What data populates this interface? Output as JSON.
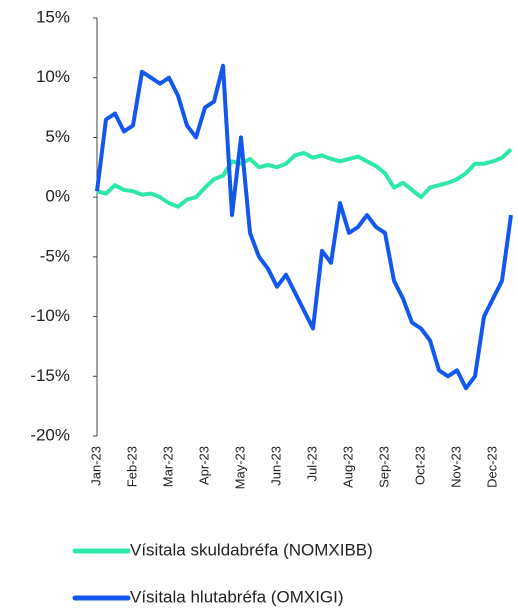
{
  "chart_data": {
    "type": "line",
    "categories": [
      "Jan-23",
      null,
      null,
      null,
      "Feb-23",
      null,
      null,
      null,
      "Mar-23",
      null,
      null,
      null,
      "Apr-23",
      null,
      null,
      null,
      "May-23",
      null,
      null,
      null,
      "Jun-23",
      null,
      null,
      null,
      "Jul-23",
      null,
      null,
      null,
      "Aug-23",
      null,
      null,
      null,
      "Sep-23",
      null,
      null,
      null,
      "Oct-23",
      null,
      null,
      null,
      "Nov-23",
      null,
      null,
      null,
      "Dec-23",
      null,
      null
    ],
    "series": [
      {
        "name": "Vísitala skuldabréfa (NOMXIBB)",
        "color": "#2de8a8",
        "values": [
          0.5,
          0.3,
          1.0,
          0.6,
          0.5,
          0.2,
          0.3,
          0.0,
          -0.5,
          -0.8,
          -0.2,
          0.0,
          0.8,
          1.5,
          1.8,
          3.0,
          2.8,
          3.2,
          2.5,
          2.7,
          2.5,
          2.8,
          3.5,
          3.7,
          3.3,
          3.5,
          3.2,
          3.0,
          3.2,
          3.4,
          3.0,
          2.6,
          2.0,
          0.8,
          1.2,
          0.6,
          0.0,
          0.8,
          1.0,
          1.2,
          1.5,
          2.0,
          2.8,
          2.8,
          3.0,
          3.3,
          4.0
        ]
      },
      {
        "name": "Vísitala hlutabréfa (OMXIGI)",
        "color": "#1257ee",
        "values": [
          0.5,
          6.5,
          7.0,
          5.5,
          6.0,
          10.5,
          10.0,
          9.5,
          10.0,
          8.5,
          6.0,
          5.0,
          7.5,
          8.0,
          11.0,
          -1.5,
          5.0,
          -3.0,
          -5.0,
          -6.0,
          -7.5,
          -6.5,
          -8.0,
          -9.5,
          -11.0,
          -4.5,
          -5.5,
          -0.5,
          -3.0,
          -2.5,
          -1.5,
          -2.5,
          -3.0,
          -7.0,
          -8.5,
          -10.5,
          -11.0,
          -12.0,
          -14.5,
          -15.0,
          -14.5,
          -16.0,
          -15.0,
          -10.0,
          -8.5,
          -7.0,
          -1.5
        ]
      }
    ],
    "ylim": [
      -20,
      15
    ],
    "yticks": [
      {
        "value": -20,
        "label": "-20%"
      },
      {
        "value": -15,
        "label": "-15%"
      },
      {
        "value": -10,
        "label": "-10%"
      },
      {
        "value": -5,
        "label": "-5%"
      },
      {
        "value": 0,
        "label": "0%"
      },
      {
        "value": 5,
        "label": "5%"
      },
      {
        "value": 10,
        "label": "10%"
      },
      {
        "value": 15,
        "label": "15%"
      }
    ]
  }
}
